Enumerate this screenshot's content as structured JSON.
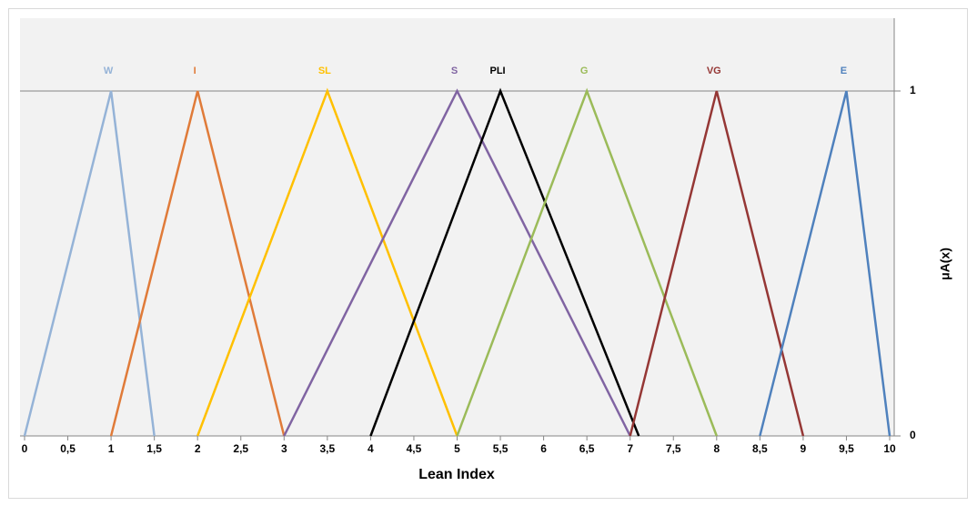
{
  "chart_data": {
    "type": "line",
    "xlabel": "Lean Index",
    "ylabel": "μA(x)",
    "xlim": [
      0,
      10
    ],
    "ylim": [
      0,
      1.2
    ],
    "xticks": [
      0,
      {
        "value": 0.5,
        "label": "0,5"
      },
      1,
      {
        "value": 1.5,
        "label": "1,5"
      },
      2,
      {
        "value": 2.5,
        "label": "2,5"
      },
      3,
      {
        "value": 3.5,
        "label": "3,5"
      },
      4,
      {
        "value": 4.5,
        "label": "4,5"
      },
      5,
      {
        "value": 5.5,
        "label": "5,5"
      },
      6,
      {
        "value": 6.5,
        "label": "6,5"
      },
      7,
      {
        "value": 7.5,
        "label": "7,5"
      },
      8,
      {
        "value": 8.5,
        "label": "8,5"
      },
      9,
      {
        "value": 9.5,
        "label": "9,5"
      },
      10
    ],
    "yticks": [
      0,
      1
    ],
    "grid": true,
    "series": [
      {
        "name": "W",
        "color": "#95b3d7",
        "x": [
          0,
          1,
          1.5
        ],
        "values": [
          0,
          1,
          0
        ]
      },
      {
        "name": "I",
        "color": "#e07b39",
        "x": [
          1,
          2,
          3
        ],
        "values": [
          0,
          1,
          0
        ]
      },
      {
        "name": "SL",
        "color": "#ffc000",
        "x": [
          2,
          3.5,
          5
        ],
        "values": [
          0,
          1,
          0
        ]
      },
      {
        "name": "S",
        "color": "#8064a2",
        "x": [
          3,
          5,
          7
        ],
        "values": [
          0,
          1,
          0
        ]
      },
      {
        "name": "PLI",
        "color": "#000000",
        "x": [
          4,
          5.5,
          7.1
        ],
        "values": [
          0,
          1,
          0
        ]
      },
      {
        "name": "G",
        "color": "#9bbb59",
        "x": [
          5,
          6.5,
          8
        ],
        "values": [
          0,
          1,
          0
        ]
      },
      {
        "name": "VG",
        "color": "#953735",
        "x": [
          7,
          8,
          9
        ],
        "values": [
          0,
          1,
          0
        ]
      },
      {
        "name": "E",
        "color": "#4f81bd",
        "x": [
          8.5,
          9.5,
          10
        ],
        "values": [
          0,
          1,
          0
        ]
      }
    ]
  }
}
